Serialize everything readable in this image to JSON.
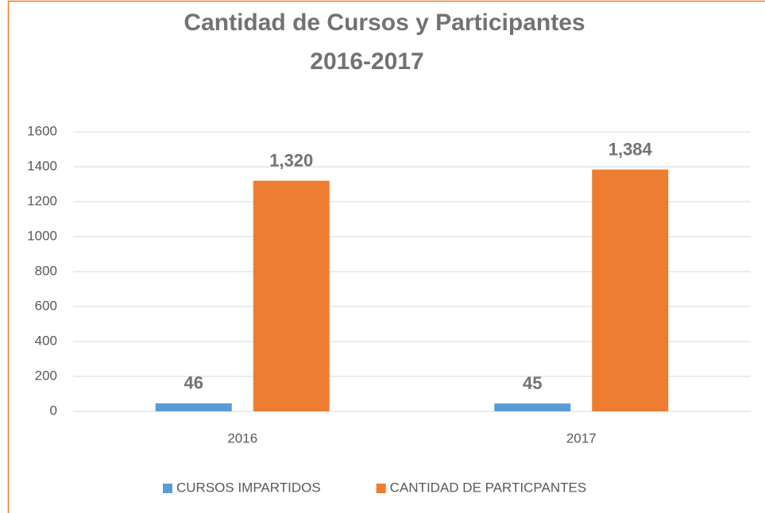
{
  "chart_data": {
    "type": "bar",
    "title": "Cantidad de Cursos y Participantes",
    "subtitle": "2016-2017",
    "categories": [
      "2016",
      "2017"
    ],
    "series": [
      {
        "name": "CURSOS IMPARTIDOS",
        "color": "#5b9bd5",
        "values": [
          46,
          45
        ],
        "value_labels": [
          "46",
          "45"
        ]
      },
      {
        "name": "CANTIDAD DE PARTICPANTES",
        "color": "#ed7d31",
        "values": [
          1320,
          1384
        ],
        "value_labels": [
          "1,320",
          "1,384"
        ]
      }
    ],
    "ylim": [
      0,
      1600
    ],
    "yticks": [
      0,
      200,
      400,
      600,
      800,
      1000,
      1200,
      1400,
      1600
    ],
    "grid": true,
    "legend": "bottom"
  }
}
